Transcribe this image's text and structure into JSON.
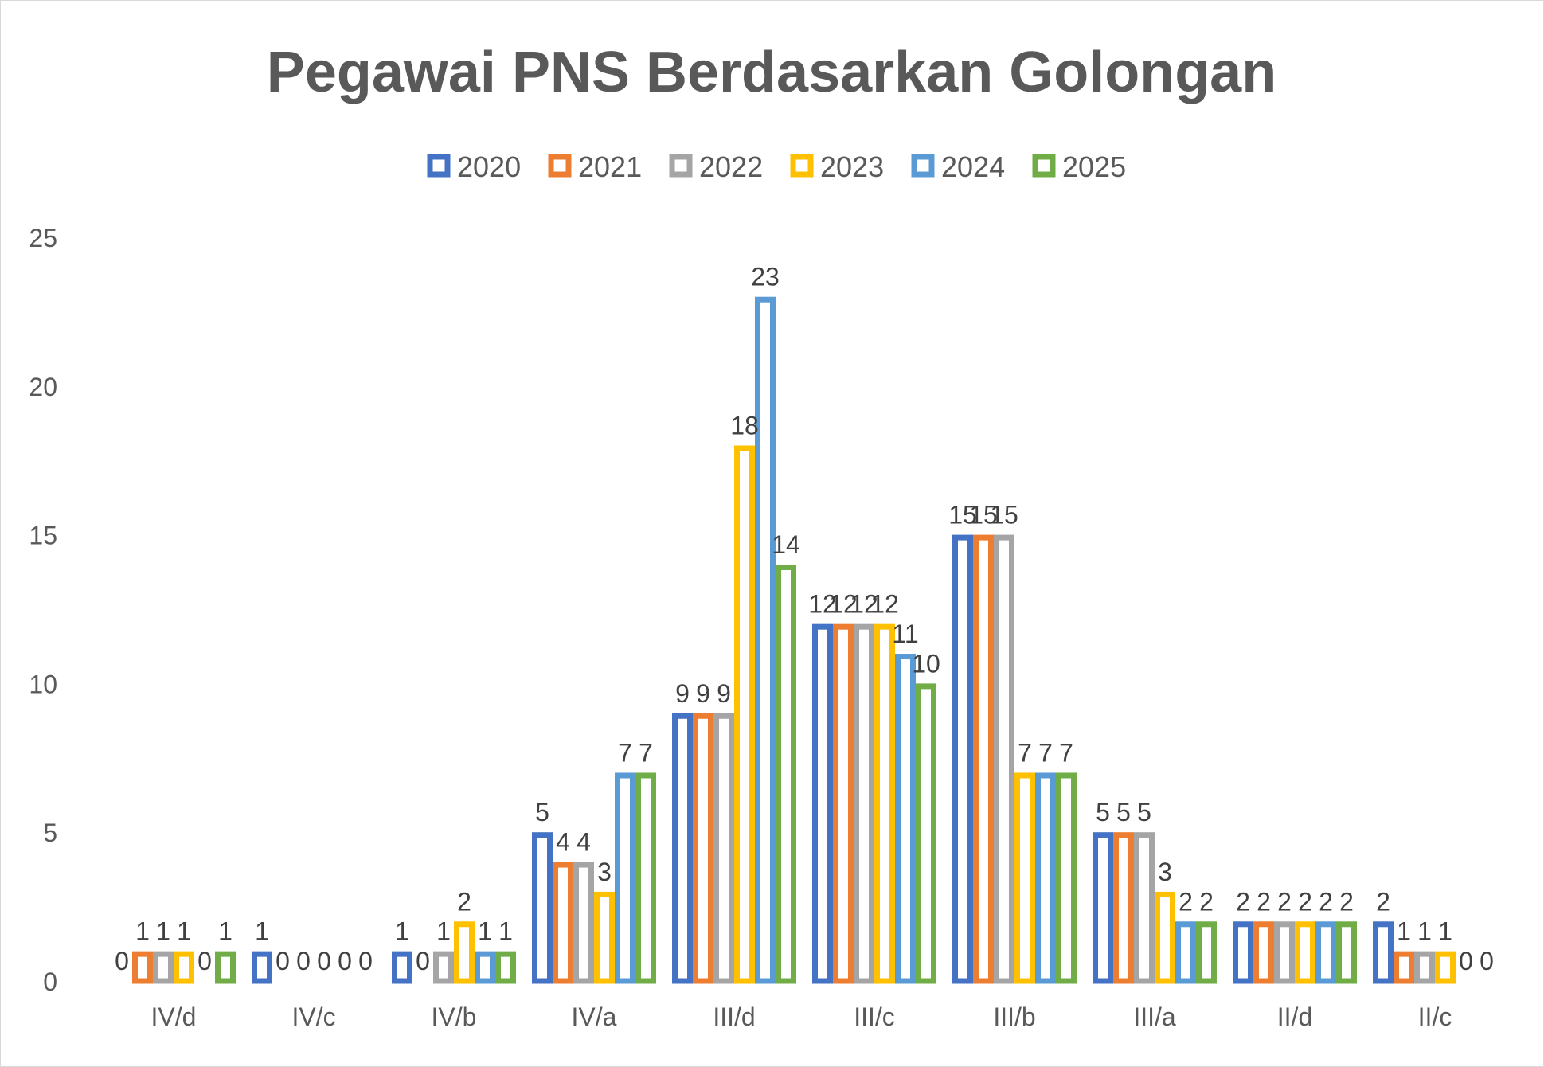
{
  "chart_data": {
    "type": "bar",
    "title": "Pegawai PNS Berdasarkan Golongan",
    "xlabel": "",
    "ylabel": "",
    "ylim": [
      0,
      25
    ],
    "yticks": [
      0,
      5,
      10,
      15,
      20,
      25
    ],
    "grid": false,
    "legend_position": "top",
    "categories": [
      "IV/d",
      "IV/c",
      "IV/b",
      "IV/a",
      "III/d",
      "III/c",
      "III/b",
      "III/a",
      "II/d",
      "II/c"
    ],
    "series": [
      {
        "name": "2020",
        "color": "#4472C4",
        "values": [
          0,
          1,
          1,
          5,
          9,
          12,
          15,
          5,
          2,
          2
        ]
      },
      {
        "name": "2021",
        "color": "#ED7D31",
        "values": [
          1,
          0,
          0,
          4,
          9,
          12,
          15,
          5,
          2,
          1
        ]
      },
      {
        "name": "2022",
        "color": "#A5A5A5",
        "values": [
          1,
          0,
          1,
          4,
          9,
          12,
          15,
          5,
          2,
          1
        ]
      },
      {
        "name": "2023",
        "color": "#FFC000",
        "values": [
          1,
          0,
          2,
          3,
          18,
          12,
          7,
          3,
          2,
          1
        ]
      },
      {
        "name": "2024",
        "color": "#5B9BD5",
        "values": [
          0,
          0,
          1,
          7,
          23,
          11,
          7,
          2,
          2,
          0
        ]
      },
      {
        "name": "2025",
        "color": "#70AD47",
        "values": [
          1,
          0,
          1,
          7,
          14,
          10,
          7,
          2,
          2,
          0
        ]
      }
    ]
  }
}
